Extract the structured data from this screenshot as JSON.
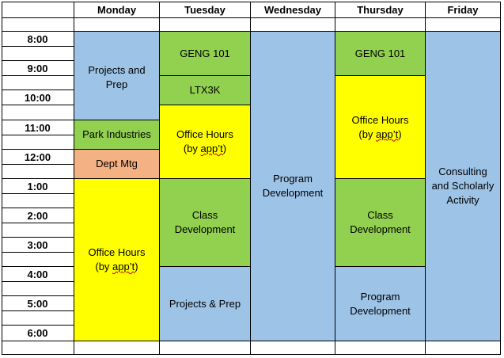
{
  "days": [
    "Monday",
    "Tuesday",
    "Wednesday",
    "Thursday",
    "Friday"
  ],
  "times": [
    "8:00",
    "9:00",
    "10:00",
    "11:00",
    "12:00",
    "1:00",
    "2:00",
    "3:00",
    "4:00",
    "5:00",
    "6:00"
  ],
  "colors": {
    "blue": "#9dc3e6",
    "green": "#92d050",
    "yellow": "#ffff00",
    "salmon": "#f4b183"
  },
  "schedule": {
    "monday": {
      "projects_prep": "Projects and Prep",
      "park_industries": "Park Industries",
      "dept_mtg": "Dept Mtg",
      "office_hours": {
        "line1": "Office Hours",
        "line2_pre": "(by ",
        "line2_app": "app’t",
        "line2_post": ")"
      }
    },
    "tuesday": {
      "geng101": "GENG 101",
      "ltx3k": "LTX3K",
      "office_hours": {
        "line1": "Office Hours",
        "line2_pre": "(by ",
        "line2_app": "app’t",
        "line2_post": ")"
      },
      "class_dev": {
        "line1": "Class",
        "line2": "Development"
      },
      "projects_prep": "Projects & Prep"
    },
    "wednesday": {
      "program_dev": {
        "line1": "Program",
        "line2": "Development"
      }
    },
    "thursday": {
      "geng101": "GENG 101",
      "office_hours": {
        "line1": "Office Hours",
        "line2_pre": "(by ",
        "line2_app": "app’t",
        "line2_post": ")"
      },
      "class_dev": {
        "line1": "Class",
        "line2": "Development"
      },
      "program_dev": {
        "line1": "Program",
        "line2": "Development"
      }
    },
    "friday": {
      "consulting": {
        "line1": "Consulting",
        "line2": "and Scholarly",
        "line3": "Activity"
      }
    }
  }
}
